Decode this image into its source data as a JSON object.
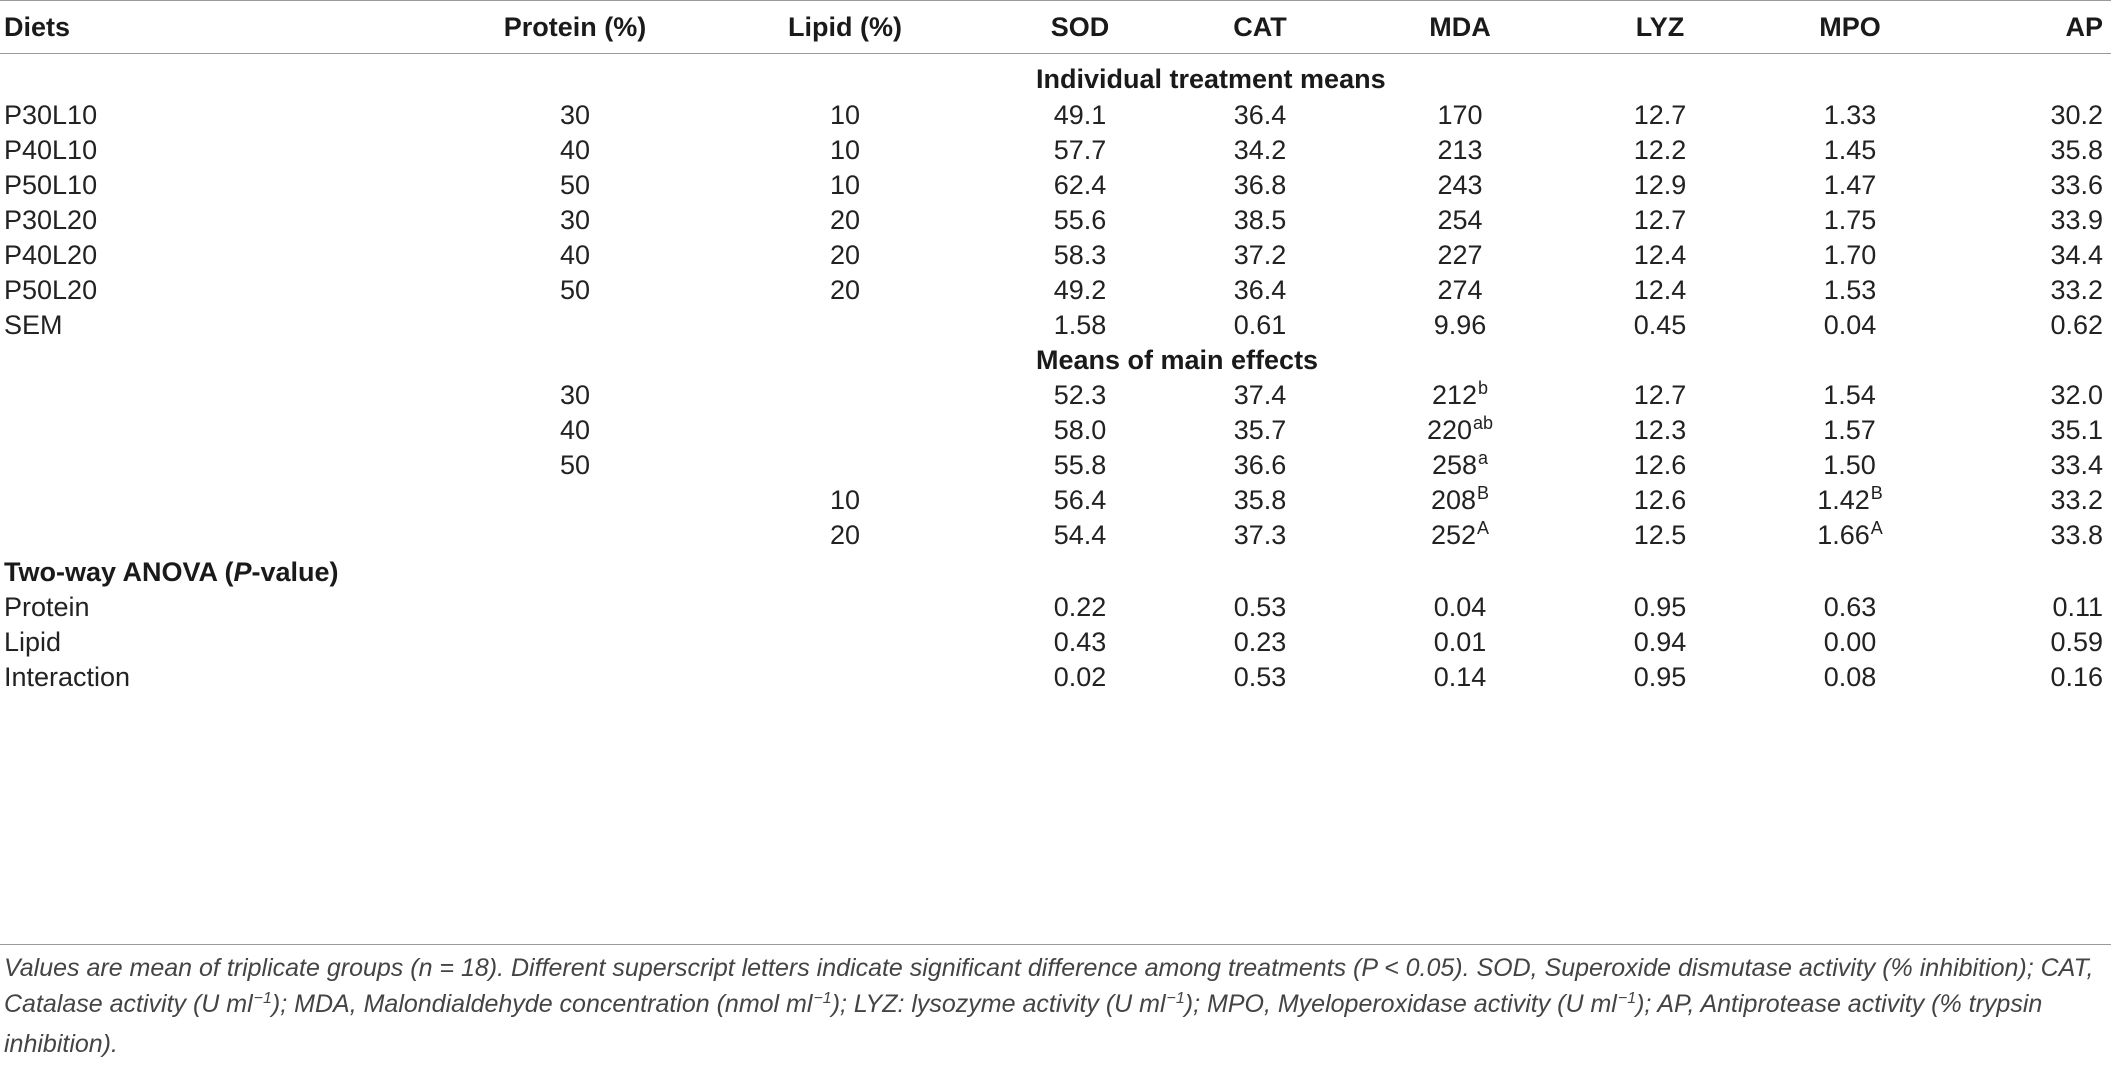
{
  "table": {
    "columns": [
      "Diets",
      "Protein (%)",
      "Lipid (%)",
      "SOD",
      "CAT",
      "MDA",
      "LYZ",
      "MPO",
      "AP"
    ],
    "section_individual": "Individual treatment means",
    "individual_rows": [
      {
        "diet": "P30L10",
        "protein": "30",
        "lipid": "10",
        "sod": "49.1",
        "cat": "36.4",
        "mda": "170",
        "lyz": "12.7",
        "mpo": "1.33",
        "ap": "30.2"
      },
      {
        "diet": "P40L10",
        "protein": "40",
        "lipid": "10",
        "sod": "57.7",
        "cat": "34.2",
        "mda": "213",
        "lyz": "12.2",
        "mpo": "1.45",
        "ap": "35.8"
      },
      {
        "diet": "P50L10",
        "protein": "50",
        "lipid": "10",
        "sod": "62.4",
        "cat": "36.8",
        "mda": "243",
        "lyz": "12.9",
        "mpo": "1.47",
        "ap": "33.6"
      },
      {
        "diet": "P30L20",
        "protein": "30",
        "lipid": "20",
        "sod": "55.6",
        "cat": "38.5",
        "mda": "254",
        "lyz": "12.7",
        "mpo": "1.75",
        "ap": "33.9"
      },
      {
        "diet": "P40L20",
        "protein": "40",
        "lipid": "20",
        "sod": "58.3",
        "cat": "37.2",
        "mda": "227",
        "lyz": "12.4",
        "mpo": "1.70",
        "ap": "34.4"
      },
      {
        "diet": "P50L20",
        "protein": "50",
        "lipid": "20",
        "sod": "49.2",
        "cat": "36.4",
        "mda": "274",
        "lyz": "12.4",
        "mpo": "1.53",
        "ap": "33.2"
      },
      {
        "diet": "SEM",
        "protein": "",
        "lipid": "",
        "sod": "1.58",
        "cat": "0.61",
        "mda": "9.96",
        "lyz": "0.45",
        "mpo": "0.04",
        "ap": "0.62"
      }
    ],
    "section_main": "Means of main effects",
    "main_rows": [
      {
        "protein": "30",
        "lipid": "",
        "sod": "52.3",
        "cat": "37.4",
        "mda": "212",
        "mda_sup": "b",
        "lyz": "12.7",
        "mpo": "1.54",
        "mpo_sup": "",
        "ap": "32.0"
      },
      {
        "protein": "40",
        "lipid": "",
        "sod": "58.0",
        "cat": "35.7",
        "mda": "220",
        "mda_sup": "ab",
        "lyz": "12.3",
        "mpo": "1.57",
        "mpo_sup": "",
        "ap": "35.1"
      },
      {
        "protein": "50",
        "lipid": "",
        "sod": "55.8",
        "cat": "36.6",
        "mda": "258",
        "mda_sup": "a",
        "lyz": "12.6",
        "mpo": "1.50",
        "mpo_sup": "",
        "ap": "33.4"
      },
      {
        "protein": "",
        "lipid": "10",
        "sod": "56.4",
        "cat": "35.8",
        "mda": "208",
        "mda_sup": "B",
        "lyz": "12.6",
        "mpo": "1.42",
        "mpo_sup": "B",
        "ap": "33.2"
      },
      {
        "protein": "",
        "lipid": "20",
        "sod": "54.4",
        "cat": "37.3",
        "mda": "252",
        "mda_sup": "A",
        "lyz": "12.5",
        "mpo": "1.66",
        "mpo_sup": "A",
        "ap": "33.8"
      }
    ],
    "anova_label_pre": "Two-way ANOVA (",
    "anova_label_p": "P",
    "anova_label_post": "-value)",
    "anova_rows": [
      {
        "label": "Protein",
        "sod": "0.22",
        "cat": "0.53",
        "mda": "0.04",
        "lyz": "0.95",
        "mpo": "0.63",
        "ap": "0.11"
      },
      {
        "label": "Lipid",
        "sod": "0.43",
        "cat": "0.23",
        "mda": "0.01",
        "lyz": "0.94",
        "mpo": "0.00",
        "ap": "0.59"
      },
      {
        "label": "Interaction",
        "sod": "0.02",
        "cat": "0.53",
        "mda": "0.14",
        "lyz": "0.95",
        "mpo": "0.08",
        "ap": "0.16"
      }
    ]
  },
  "footnote": {
    "p1": "Values are mean of triplicate groups (n = 18). Different superscript letters indicate significant difference among treatments (P < 0.05). SOD, Superoxide dismutase activity (% inhibition); CAT, Catalase activity (U ml",
    "s1": "−1",
    "p2": "); MDA, Malondialdehyde concentration (nmol ml",
    "s2": "−1",
    "p3": "); LYZ: lysozyme activity (U ml",
    "s3": "−1",
    "p4": "); MPO, Myeloperoxidase activity (U ml",
    "s4": "−1",
    "p5": "); AP, Antiprotease activity (% trypsin inhibition)."
  },
  "colors": {
    "text": "#222222",
    "rule": "#9a9a9a",
    "note": "#444444"
  }
}
